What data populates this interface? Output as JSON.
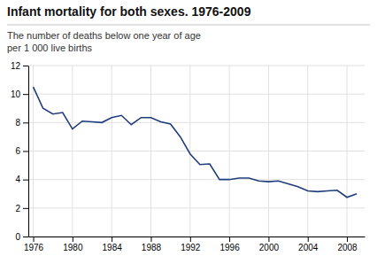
{
  "chart_data": {
    "type": "line",
    "title": "Infant mortality for both sexes. 1976-2009",
    "subtitle": [
      "The number of deaths below one year of age",
      "per 1 000 live births"
    ],
    "x": [
      1976,
      1977,
      1978,
      1979,
      1980,
      1981,
      1982,
      1983,
      1984,
      1985,
      1986,
      1987,
      1988,
      1989,
      1990,
      1991,
      1992,
      1993,
      1994,
      1995,
      1996,
      1997,
      1998,
      1999,
      2000,
      2001,
      2002,
      2003,
      2004,
      2005,
      2006,
      2007,
      2008,
      2009
    ],
    "values": [
      10.5,
      9.0,
      8.6,
      8.7,
      7.55,
      8.1,
      8.05,
      8.0,
      8.35,
      8.5,
      7.85,
      8.35,
      8.35,
      8.05,
      7.9,
      7.0,
      5.8,
      5.05,
      5.1,
      4.0,
      4.0,
      4.1,
      4.1,
      3.9,
      3.85,
      3.9,
      3.7,
      3.5,
      3.2,
      3.15,
      3.2,
      3.25,
      2.75,
      3.0
    ],
    "color": "#1f3d7a",
    "xlim": [
      1975.5,
      2009.8
    ],
    "xticks": [
      1976,
      1980,
      1984,
      1988,
      1992,
      1996,
      2000,
      2004,
      2008
    ],
    "ylim": [
      0,
      12
    ],
    "yticks": [
      0,
      2,
      4,
      6,
      8,
      10,
      12
    ],
    "grid": true
  }
}
